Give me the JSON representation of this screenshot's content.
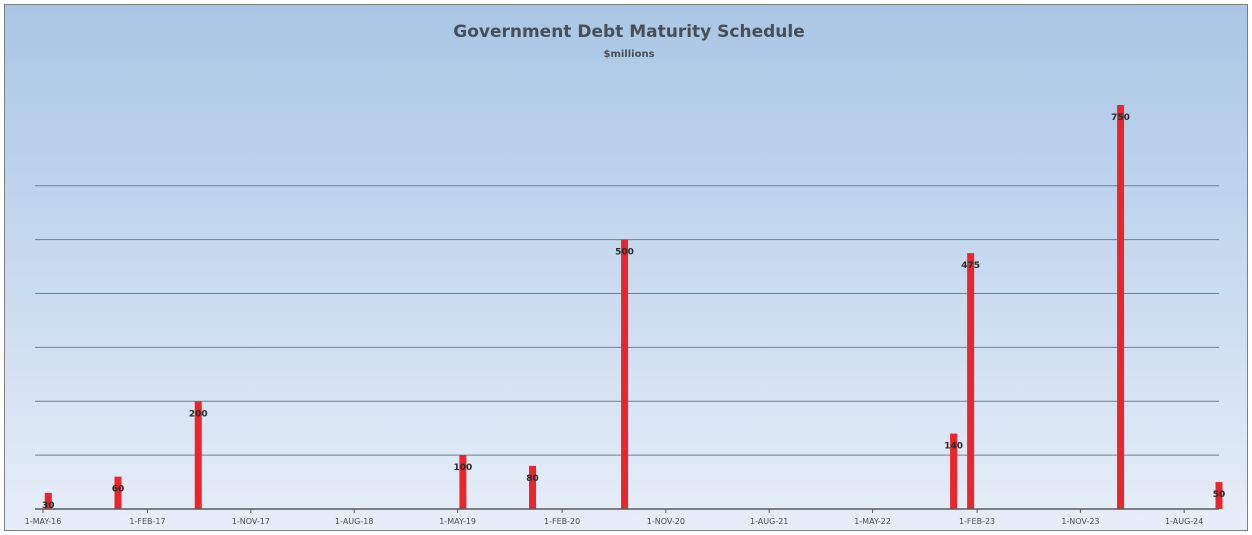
{
  "chart_data": {
    "type": "bar",
    "title": "Government Debt Maturity Schedule",
    "subtitle": "$millions",
    "xlabel": "",
    "ylabel": "",
    "ylim": [
      0,
      750
    ],
    "gridlines_y": [
      100,
      200,
      300,
      400,
      500,
      600
    ],
    "grid": true,
    "legend": "none",
    "bar_color": "#e8262b",
    "x_range": [
      "2016-05-01",
      "2024-11-01"
    ],
    "x_ticks": [
      {
        "date": "2016-05-01",
        "label": "1-MAY-16"
      },
      {
        "date": "2017-02-01",
        "label": "1-FEB-17"
      },
      {
        "date": "2017-11-01",
        "label": "1-NOV-17"
      },
      {
        "date": "2018-08-01",
        "label": "1-AUG-18"
      },
      {
        "date": "2019-05-01",
        "label": "1-MAY-19"
      },
      {
        "date": "2020-02-01",
        "label": "1-FEB-20"
      },
      {
        "date": "2020-11-01",
        "label": "1-NOV-20"
      },
      {
        "date": "2021-08-01",
        "label": "1-AUG-21"
      },
      {
        "date": "2022-05-01",
        "label": "1-MAY-22"
      },
      {
        "date": "2023-02-01",
        "label": "1-FEB-23"
      },
      {
        "date": "2023-11-01",
        "label": "1-NOV-23"
      },
      {
        "date": "2024-08-01",
        "label": "1-AUG-24"
      }
    ],
    "bars": [
      {
        "date": "2016-05-15",
        "value": 30,
        "label": "30"
      },
      {
        "date": "2016-11-15",
        "value": 60,
        "label": "60"
      },
      {
        "date": "2017-06-15",
        "value": 200,
        "label": "200"
      },
      {
        "date": "2019-05-15",
        "value": 100,
        "label": "100"
      },
      {
        "date": "2019-11-15",
        "value": 80,
        "label": "80"
      },
      {
        "date": "2020-07-15",
        "value": 500,
        "label": "500"
      },
      {
        "date": "2022-12-01",
        "value": 140,
        "label": "140"
      },
      {
        "date": "2023-01-15",
        "value": 475,
        "label": "475"
      },
      {
        "date": "2024-02-15",
        "value": 750,
        "label": "750"
      },
      {
        "date": "2024-11-01",
        "value": 50,
        "label": "50"
      }
    ]
  }
}
